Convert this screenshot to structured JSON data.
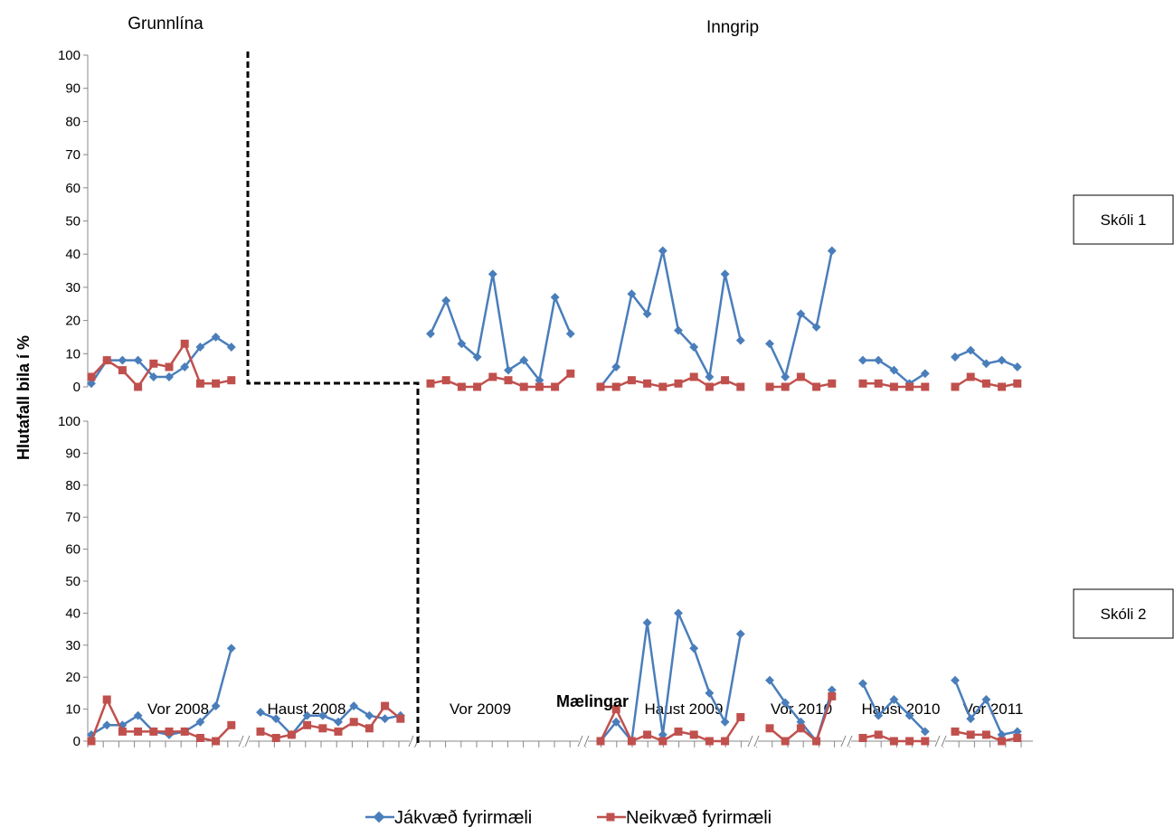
{
  "chart_data": {
    "type": "line",
    "title": "",
    "ylabel": "Hlutafall bila í %",
    "xlabel": "Mælingar",
    "ylim": [
      0,
      100
    ],
    "yticks": [
      "0",
      "10",
      "20",
      "30",
      "40",
      "50",
      "60",
      "70",
      "80",
      "90",
      "100"
    ],
    "grid": false,
    "legend_position": "bottom",
    "phase_labels": {
      "baseline": "Grunnlína",
      "intervention": "Inngrip"
    },
    "categories": [
      "Vor 2008",
      "Haust 2008",
      "Vor 2009",
      "Haust 2009",
      "Vor 2010",
      "Haust 2010",
      "Vor 2011"
    ],
    "series_names": [
      "Jákvæð fyrirmæli",
      "Neikvæð fyrirmæli"
    ],
    "colors": {
      "positive": "#4a7ebb",
      "negative": "#c0504d",
      "axis": "#888888",
      "phase_line": "#000000"
    },
    "panels": [
      {
        "label": "Skóli 1",
        "series": [
          {
            "name": "Jákvæð fyrirmæli",
            "segments": [
              [
                1,
                8,
                8,
                8,
                3,
                3,
                6,
                12,
                15,
                12
              ],
              [],
              [
                16,
                26,
                13,
                9,
                34,
                5,
                8,
                2,
                27,
                16
              ],
              [
                0,
                6,
                28,
                22,
                41,
                17,
                12,
                3,
                34,
                14
              ],
              [
                13,
                3,
                22,
                18,
                41
              ],
              [
                8,
                8,
                5,
                1,
                4
              ],
              [
                9,
                11,
                7,
                8,
                6
              ]
            ]
          },
          {
            "name": "Neikvæð fyrirmæli",
            "segments": [
              [
                3,
                8,
                5,
                0,
                7,
                6,
                13,
                1,
                1,
                2
              ],
              [],
              [
                1,
                2,
                0,
                0,
                3,
                2,
                0,
                0,
                0,
                4
              ],
              [
                0,
                0,
                2,
                1,
                0,
                1,
                3,
                0,
                2,
                0
              ],
              [
                0,
                0,
                3,
                0,
                1
              ],
              [
                1,
                1,
                0,
                0,
                0
              ],
              [
                0,
                3,
                1,
                0,
                1
              ]
            ]
          }
        ]
      },
      {
        "label": "Skóli 2",
        "series": [
          {
            "name": "Jákvæð fyrirmæli",
            "segments": [
              [
                2,
                5,
                5,
                8,
                3,
                2,
                3,
                6,
                11,
                29
              ],
              [
                9,
                7,
                2,
                8,
                8,
                6,
                11,
                8,
                7,
                8
              ],
              [],
              [
                0,
                6,
                0,
                37,
                2,
                40,
                29,
                15,
                6,
                33.5
              ],
              [
                19,
                12,
                6,
                0,
                16
              ],
              [
                18,
                8,
                13,
                8,
                3
              ],
              [
                19,
                7,
                13,
                2,
                3
              ]
            ]
          },
          {
            "name": "Neikvæð fyrirmæli",
            "segments": [
              [
                0,
                13,
                3,
                3,
                3,
                3,
                3,
                1,
                0,
                5
              ],
              [
                3,
                1,
                2,
                5,
                4,
                3,
                6,
                4,
                11,
                7
              ],
              [],
              [
                0,
                10,
                0,
                2,
                0,
                3,
                2,
                0,
                0,
                7.5
              ],
              [
                4,
                0,
                4,
                0,
                14
              ],
              [
                1,
                2,
                0,
                0,
                0
              ],
              [
                3,
                2,
                2,
                0,
                1
              ]
            ]
          }
        ]
      }
    ]
  }
}
